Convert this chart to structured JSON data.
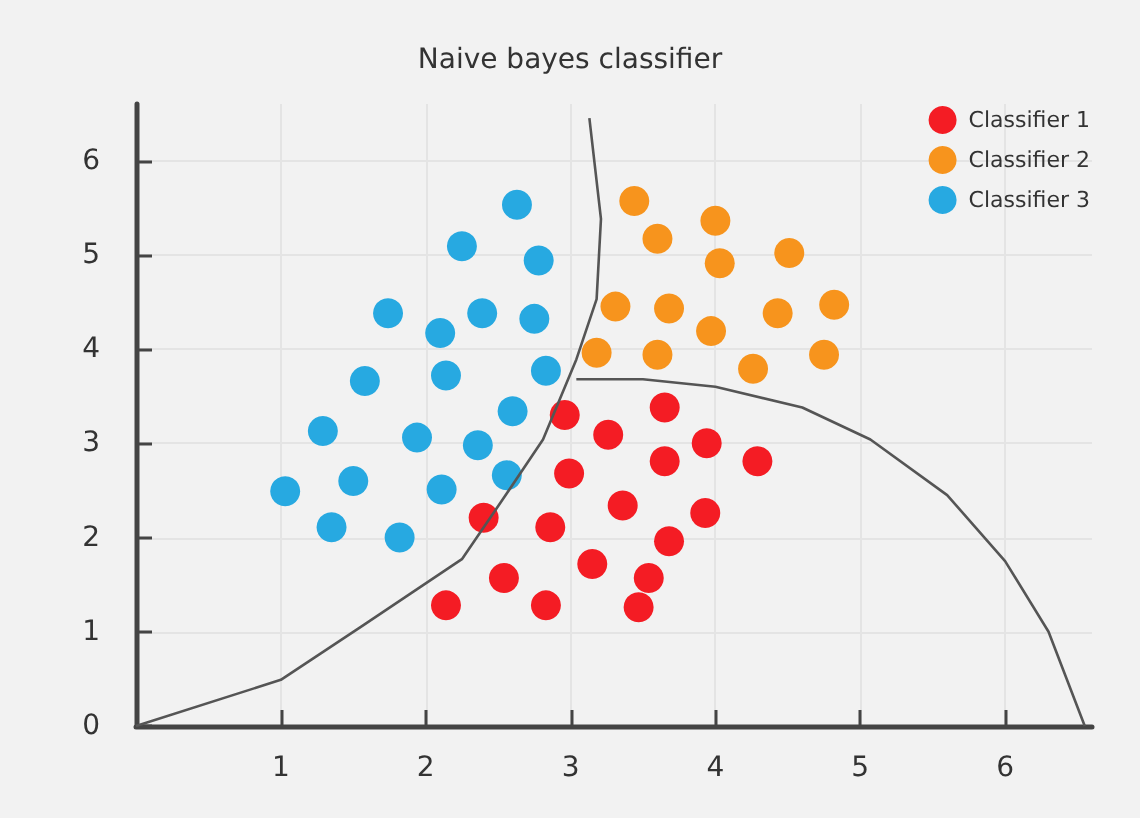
{
  "chart_data": {
    "type": "scatter",
    "title": "Naive bayes classifier",
    "xlim": [
      0,
      6.6
    ],
    "ylim": [
      0,
      6.6
    ],
    "xticks": [
      1,
      2,
      3,
      4,
      5,
      6
    ],
    "yticks": [
      0,
      1,
      2,
      3,
      4,
      5,
      6
    ],
    "grid": true,
    "legend": "top right",
    "marker": "circle",
    "series": [
      {
        "name": "Classifier 1",
        "color": "#f41c24",
        "x": [
          2.96,
          3.65,
          3.26,
          3.94,
          3.65,
          4.29,
          2.99,
          3.36,
          2.4,
          2.86,
          3.93,
          3.68,
          3.15,
          3.54,
          2.54,
          2.83,
          2.14,
          3.47
        ],
        "values": [
          3.3,
          3.38,
          3.09,
          3.0,
          2.81,
          2.81,
          2.68,
          2.34,
          2.21,
          2.11,
          2.26,
          1.96,
          1.72,
          1.57,
          1.57,
          1.28,
          1.28,
          1.26
        ]
      },
      {
        "name": "Classifier 2",
        "color": "#f7941d",
        "x": [
          3.44,
          4.0,
          3.6,
          4.03,
          4.51,
          3.31,
          3.68,
          3.97,
          4.43,
          4.82,
          3.18,
          3.6,
          4.26,
          4.75
        ],
        "values": [
          5.57,
          5.36,
          5.17,
          4.91,
          5.02,
          4.45,
          4.43,
          4.19,
          4.38,
          4.47,
          3.96,
          3.94,
          3.79,
          3.94
        ]
      },
      {
        "name": "Classifier 3",
        "color": "#27a9e1",
        "x": [
          2.63,
          2.25,
          2.78,
          1.74,
          2.39,
          2.1,
          2.75,
          1.58,
          2.14,
          2.83,
          1.29,
          1.94,
          2.36,
          2.6,
          1.03,
          1.5,
          2.11,
          2.56,
          1.35,
          1.82
        ],
        "values": [
          5.53,
          5.09,
          4.94,
          4.38,
          4.38,
          4.17,
          4.32,
          3.66,
          3.72,
          3.77,
          3.13,
          3.06,
          2.98,
          3.34,
          2.49,
          2.6,
          2.51,
          2.66,
          2.11,
          2.0
        ]
      },
      {
        "type": "line",
        "color": "#555555",
        "marker": "none",
        "x": [
          0,
          1.0,
          1.56,
          2.25,
          2.53,
          2.81,
          3.04,
          3.18,
          3.21,
          3.13
        ],
        "values": [
          0,
          0.49,
          1.06,
          1.77,
          2.4,
          3.04,
          3.89,
          4.53,
          5.38,
          6.45
        ]
      },
      {
        "type": "line",
        "color": "#555555",
        "marker": "none",
        "x": [
          3.04,
          3.5,
          4.0,
          4.6,
          5.07,
          5.6,
          6.0,
          6.3,
          6.55
        ],
        "values": [
          3.68,
          3.68,
          3.6,
          3.38,
          3.04,
          2.45,
          1.75,
          1.0,
          0
        ]
      }
    ]
  }
}
